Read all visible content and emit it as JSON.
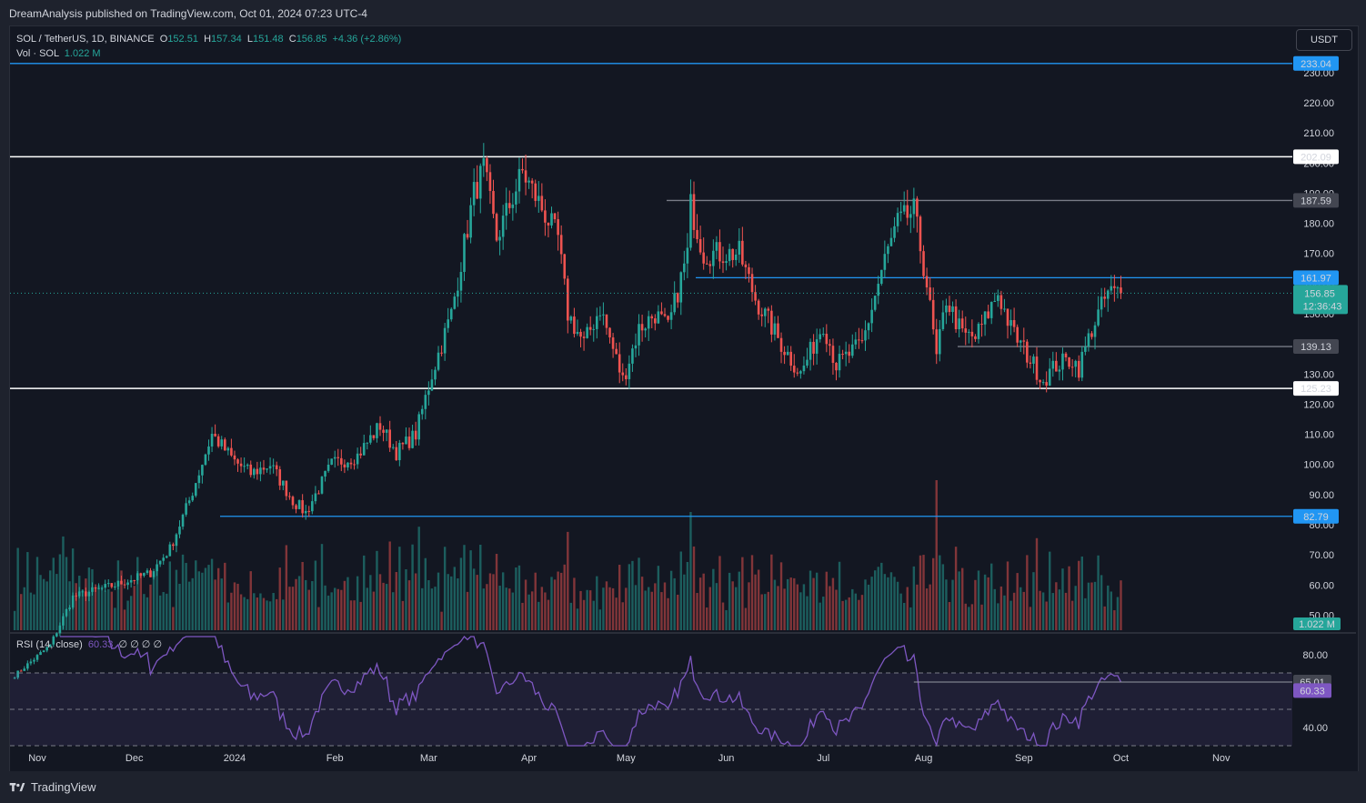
{
  "header": {
    "publisher": "DreamAnalysis published on TradingView.com, Oct 01, 2024 07:23 UTC-4"
  },
  "legend": {
    "symbol": "SOL / TetherUS, 1D, BINANCE",
    "o_label": "O",
    "o": "152.51",
    "h_label": "H",
    "h": "157.34",
    "l_label": "L",
    "l": "151.48",
    "c_label": "C",
    "c": "156.85",
    "change": "+4.36 (+2.86%)",
    "vol_label": "Vol · SOL",
    "vol": "1.022 M"
  },
  "currency_button": "USDT",
  "rsi_legend": {
    "label": "RSI (14, close)",
    "value": "60.33",
    "extras": "∅ ∅ ∅ ∅"
  },
  "branding": "TradingView",
  "colors": {
    "up": "#26a69a",
    "down": "#ef5350",
    "blue_line": "#2196f3",
    "white_line": "#ffffff",
    "gray_line": "#787b86",
    "rsi": "#7e57c2"
  },
  "chart_data": {
    "type": "candlestick",
    "symbol": "SOL / TetherUS, 1D, BINANCE",
    "ylim": [
      45,
      236
    ],
    "y_ticks": [
      50,
      60,
      70,
      80,
      90,
      100,
      110,
      120,
      130,
      140,
      150,
      160,
      170,
      180,
      190,
      200,
      210,
      220,
      230
    ],
    "x_ticks": [
      "Nov",
      "Dec",
      "2024",
      "Feb",
      "Mar",
      "Apr",
      "May",
      "Jun",
      "Jul",
      "Aug",
      "Sep",
      "Oct",
      "Nov"
    ],
    "x_tick_dates": [
      "2023-11-01",
      "2023-12-01",
      "2024-01-01",
      "2024-02-01",
      "2024-03-01",
      "2024-04-01",
      "2024-05-01",
      "2024-06-01",
      "2024-07-01",
      "2024-08-01",
      "2024-09-01",
      "2024-10-01",
      "2024-11-01"
    ],
    "first_bar_date": "2023-10-25",
    "last_bar_date": "2024-10-01",
    "anchors": [
      [
        "2023-10-25",
        30
      ],
      [
        "2023-11-05",
        40
      ],
      [
        "2023-11-12",
        56
      ],
      [
        "2023-11-18",
        58
      ],
      [
        "2023-11-25",
        60
      ],
      [
        "2023-12-06",
        64
      ],
      [
        "2023-12-12",
        72
      ],
      [
        "2023-12-18",
        88
      ],
      [
        "2023-12-25",
        110
      ],
      [
        "2024-01-01",
        101
      ],
      [
        "2024-01-06",
        97
      ],
      [
        "2024-01-12",
        100
      ],
      [
        "2024-01-19",
        88
      ],
      [
        "2024-01-23",
        84
      ],
      [
        "2024-01-31",
        100
      ],
      [
        "2024-02-08",
        103
      ],
      [
        "2024-02-15",
        113
      ],
      [
        "2024-02-20",
        104
      ],
      [
        "2024-02-26",
        110
      ],
      [
        "2024-03-02",
        130
      ],
      [
        "2024-03-08",
        150
      ],
      [
        "2024-03-15",
        190
      ],
      [
        "2024-03-18",
        198
      ],
      [
        "2024-03-22",
        175
      ],
      [
        "2024-03-30",
        197
      ],
      [
        "2024-04-05",
        185
      ],
      [
        "2024-04-10",
        175
      ],
      [
        "2024-04-13",
        150
      ],
      [
        "2024-04-18",
        140
      ],
      [
        "2024-04-23",
        152
      ],
      [
        "2024-04-30",
        128
      ],
      [
        "2024-05-05",
        145
      ],
      [
        "2024-05-10",
        150
      ],
      [
        "2024-05-14",
        145
      ],
      [
        "2024-05-20",
        170
      ],
      [
        "2024-05-21",
        186
      ],
      [
        "2024-05-25",
        170
      ],
      [
        "2024-06-05",
        170
      ],
      [
        "2024-06-10",
        155
      ],
      [
        "2024-06-18",
        140
      ],
      [
        "2024-06-24",
        130
      ],
      [
        "2024-07-01",
        147
      ],
      [
        "2024-07-05",
        133
      ],
      [
        "2024-07-13",
        140
      ],
      [
        "2024-07-20",
        168
      ],
      [
        "2024-07-24",
        180
      ],
      [
        "2024-07-29",
        184
      ],
      [
        "2024-08-02",
        160
      ],
      [
        "2024-08-05",
        135
      ],
      [
        "2024-08-08",
        155
      ],
      [
        "2024-08-13",
        143
      ],
      [
        "2024-08-17",
        142
      ],
      [
        "2024-08-20",
        148
      ],
      [
        "2024-08-24",
        157
      ],
      [
        "2024-08-28",
        145
      ],
      [
        "2024-09-04",
        133
      ],
      [
        "2024-09-07",
        128
      ],
      [
        "2024-09-11",
        133
      ],
      [
        "2024-09-16",
        135
      ],
      [
        "2024-09-18",
        132
      ],
      [
        "2024-09-22",
        145
      ],
      [
        "2024-09-27",
        157
      ],
      [
        "2024-10-01",
        156.85
      ]
    ],
    "levels": [
      {
        "price": 233.04,
        "label": "233.04",
        "color": "#2196f3"
      },
      {
        "price": 202.09,
        "label": "202.09",
        "color": "#ffffff"
      },
      {
        "price": 187.59,
        "label": "187.59",
        "color": "#787b86"
      },
      {
        "price": 161.97,
        "label": "161.97",
        "color": "#2196f3"
      },
      {
        "price": 139.13,
        "label": "139.13",
        "color": "#787b86"
      },
      {
        "price": 125.23,
        "label": "125.23",
        "color": "#ffffff"
      },
      {
        "price": 82.79,
        "label": "82.79",
        "color": "#2196f3"
      }
    ],
    "current_price": {
      "price": 156.85,
      "label": "156.85",
      "countdown": "12:36:43"
    },
    "volume": {
      "label": "1.022 M",
      "spike_date": "2024-08-05"
    },
    "rsi": {
      "period": 14,
      "value": 60.33,
      "ylim": [
        30,
        90
      ],
      "ticks": [
        40,
        80
      ],
      "upper_band": 70,
      "lower_band": 30,
      "mid": 50,
      "level": {
        "value": 65.01,
        "label": "65.01",
        "from": "2024-07-29"
      }
    }
  }
}
